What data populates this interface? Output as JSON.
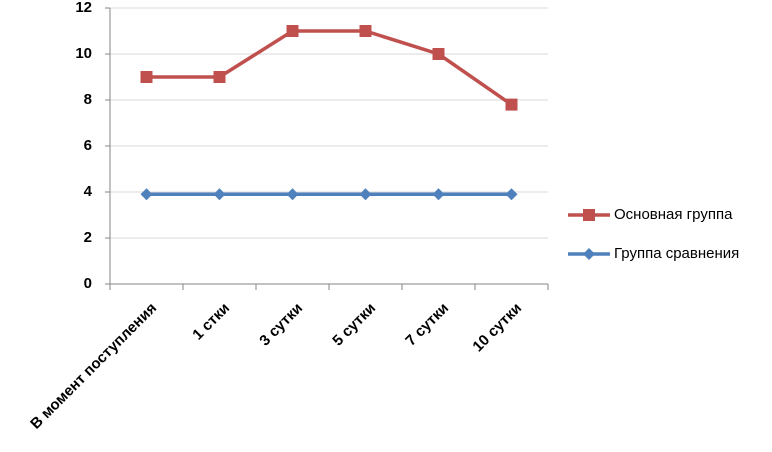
{
  "chart_data": {
    "type": "line",
    "categories": [
      "В момент поступления",
      "1 стки",
      "3 сутки",
      "5 сутки",
      "7 сутки",
      "10 сутки"
    ],
    "series": [
      {
        "name": "Основная группа",
        "color": "#c0504d",
        "marker": "square",
        "values": [
          9,
          9,
          11,
          11,
          10,
          7.8
        ]
      },
      {
        "name": "Группа сравнения",
        "color": "#4f81bd",
        "marker": "diamond",
        "values": [
          3.9,
          3.9,
          3.9,
          3.9,
          3.9,
          3.9
        ]
      }
    ],
    "ylim": [
      0,
      12
    ],
    "yticks": [
      0,
      2,
      4,
      6,
      8,
      10,
      12
    ],
    "grid": true,
    "legend": "right"
  }
}
